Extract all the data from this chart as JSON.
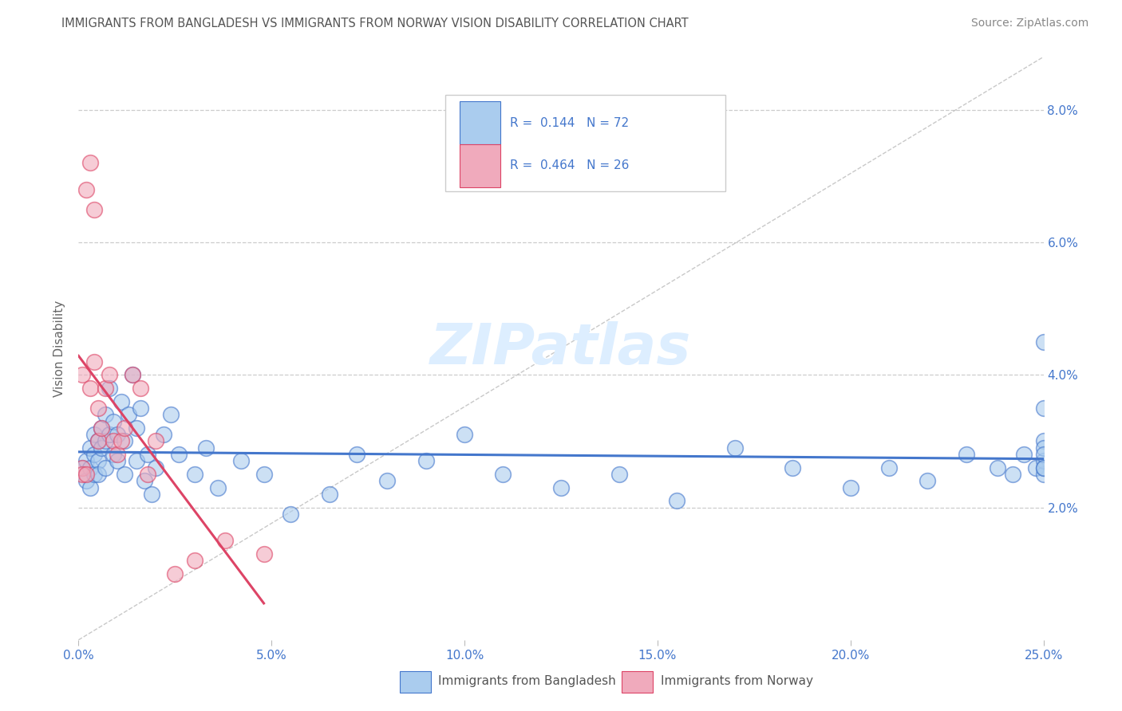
{
  "title": "IMMIGRANTS FROM BANGLADESH VS IMMIGRANTS FROM NORWAY VISION DISABILITY CORRELATION CHART",
  "source": "Source: ZipAtlas.com",
  "ylabel": "Vision Disability",
  "blue_color": "#aaccee",
  "pink_color": "#f0aabc",
  "blue_line_color": "#4477cc",
  "pink_line_color": "#dd4466",
  "legend_text_color": "#4477cc",
  "title_color": "#555555",
  "grid_color": "#cccccc",
  "ytick_color": "#4477cc",
  "xtick_color": "#4477cc",
  "watermark_color": "#ddeeff",
  "bd_x": [
    0.001,
    0.002,
    0.002,
    0.003,
    0.003,
    0.003,
    0.004,
    0.004,
    0.004,
    0.005,
    0.005,
    0.005,
    0.006,
    0.006,
    0.007,
    0.007,
    0.007,
    0.008,
    0.008,
    0.009,
    0.009,
    0.01,
    0.01,
    0.011,
    0.012,
    0.012,
    0.013,
    0.014,
    0.015,
    0.015,
    0.016,
    0.017,
    0.018,
    0.019,
    0.02,
    0.022,
    0.024,
    0.026,
    0.03,
    0.033,
    0.036,
    0.042,
    0.048,
    0.055,
    0.065,
    0.072,
    0.08,
    0.09,
    0.1,
    0.11,
    0.125,
    0.14,
    0.155,
    0.17,
    0.185,
    0.2,
    0.21,
    0.22,
    0.23,
    0.238,
    0.242,
    0.245,
    0.248,
    0.25,
    0.252,
    0.255,
    0.258,
    0.26,
    0.262,
    0.265,
    0.268,
    0.25
  ],
  "bd_y": [
    0.026,
    0.024,
    0.027,
    0.026,
    0.023,
    0.029,
    0.028,
    0.025,
    0.031,
    0.027,
    0.03,
    0.025,
    0.029,
    0.032,
    0.026,
    0.03,
    0.034,
    0.031,
    0.038,
    0.028,
    0.033,
    0.027,
    0.031,
    0.036,
    0.025,
    0.03,
    0.034,
    0.04,
    0.027,
    0.032,
    0.035,
    0.024,
    0.028,
    0.022,
    0.026,
    0.031,
    0.034,
    0.028,
    0.025,
    0.029,
    0.023,
    0.027,
    0.025,
    0.019,
    0.022,
    0.028,
    0.024,
    0.027,
    0.031,
    0.025,
    0.023,
    0.025,
    0.021,
    0.029,
    0.026,
    0.023,
    0.026,
    0.024,
    0.028,
    0.026,
    0.025,
    0.028,
    0.026,
    0.03,
    0.025,
    0.027,
    0.026,
    0.029,
    0.028,
    0.045,
    0.026,
    0.035
  ],
  "no_x": [
    0.001,
    0.001,
    0.001,
    0.002,
    0.002,
    0.003,
    0.003,
    0.004,
    0.004,
    0.005,
    0.005,
    0.006,
    0.007,
    0.008,
    0.009,
    0.01,
    0.011,
    0.012,
    0.014,
    0.016,
    0.018,
    0.02,
    0.025,
    0.03,
    0.038,
    0.048
  ],
  "no_y": [
    0.026,
    0.04,
    0.025,
    0.068,
    0.025,
    0.072,
    0.038,
    0.042,
    0.065,
    0.03,
    0.035,
    0.032,
    0.038,
    0.04,
    0.03,
    0.028,
    0.03,
    0.032,
    0.04,
    0.038,
    0.025,
    0.03,
    0.01,
    0.012,
    0.015,
    0.013
  ],
  "xmin": 0.0,
  "xmax": 0.25,
  "ymin": 0.0,
  "ymax": 0.088,
  "ytick_vals": [
    0.02,
    0.04,
    0.06,
    0.08
  ],
  "ytick_labels": [
    "2.0%",
    "4.0%",
    "6.0%",
    "8.0%"
  ],
  "xtick_vals": [
    0.0,
    0.05,
    0.1,
    0.15,
    0.2,
    0.25
  ],
  "xtick_labels": [
    "0.0%",
    "5.0%",
    "10.0%",
    "15.0%",
    "20.0%",
    "25.0%"
  ]
}
